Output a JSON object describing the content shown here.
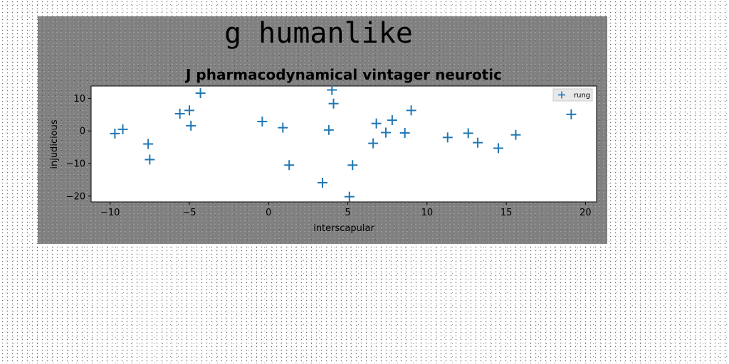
{
  "figure": {
    "suptitle": "g humanlike"
  },
  "chart_data": {
    "type": "scatter",
    "title": "J pharmacodynamical vintager neurotic",
    "xlabel": "interscapular",
    "ylabel": "injudicious",
    "xlim": [
      -11.2,
      20.7
    ],
    "ylim": [
      -21.8,
      13.8
    ],
    "xticks": [
      -10,
      -5,
      0,
      5,
      10,
      15,
      20
    ],
    "yticks": [
      -20,
      -10,
      0,
      10
    ],
    "grid": false,
    "legend": {
      "placement": "top-right",
      "entries": [
        "rung"
      ]
    },
    "marker": "+",
    "color": "#1f77b4",
    "series": [
      {
        "name": "rung",
        "x": [
          -9.7,
          -9.2,
          -7.6,
          -7.5,
          -5.6,
          -5.0,
          -4.9,
          -4.3,
          -0.4,
          0.9,
          1.3,
          3.4,
          3.8,
          4.0,
          4.1,
          5.1,
          5.3,
          6.6,
          6.8,
          7.4,
          7.8,
          8.6,
          9.0,
          11.3,
          12.6,
          13.2,
          14.5,
          15.6,
          19.1
        ],
        "y": [
          -0.8,
          0.5,
          -4.0,
          -8.8,
          5.3,
          6.3,
          1.6,
          11.6,
          2.9,
          1.0,
          -10.5,
          -15.9,
          0.3,
          12.6,
          8.4,
          -20.2,
          -10.5,
          -3.8,
          2.3,
          -0.5,
          3.3,
          -0.6,
          6.3,
          -2.0,
          -0.7,
          -3.6,
          -5.3,
          -1.2,
          5.1
        ]
      }
    ]
  }
}
